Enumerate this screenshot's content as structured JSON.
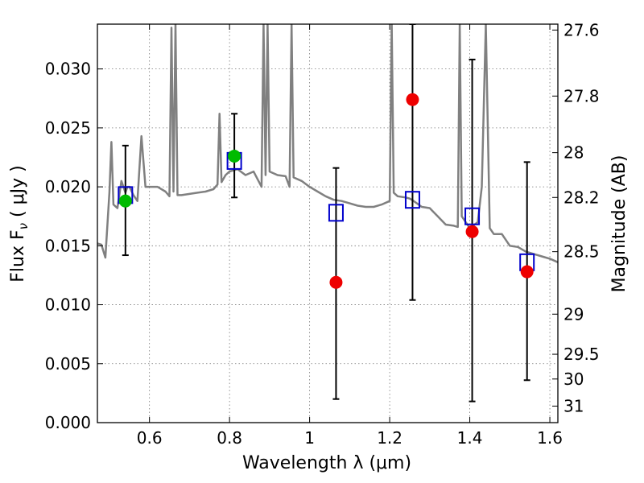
{
  "chart_data": {
    "type": "scatter",
    "xlabel": "Wavelength  λ (μm)",
    "ylabel": "Flux  F",
    "ylabel_sub": "ν",
    "ylabel_unit": "  ( μJy )",
    "y2label": "Magnitude (AB)",
    "xlim": [
      0.47,
      1.62
    ],
    "ylim": [
      0.0,
      0.0338
    ],
    "grid": true,
    "x_ticks": [
      0.6,
      0.8,
      1.0,
      1.2,
      1.4,
      1.6
    ],
    "x_tick_labels": [
      "0.6",
      "0.8",
      "1",
      "1.2",
      "1.4",
      "1.6"
    ],
    "y_ticks": [
      0.0,
      0.005,
      0.01,
      0.015,
      0.02,
      0.025,
      0.03
    ],
    "y_tick_labels": [
      "0.000",
      "0.005",
      "0.010",
      "0.015",
      "0.020",
      "0.025",
      "0.030"
    ],
    "y2_ticks": [
      {
        "flux": 0.0333,
        "label": "27.6"
      },
      {
        "flux": 0.0277,
        "label": "27.8"
      },
      {
        "flux": 0.0229,
        "label": "28"
      },
      {
        "flux": 0.0191,
        "label": "28.2"
      },
      {
        "flux": 0.0145,
        "label": "28.5"
      },
      {
        "flux": 0.0092,
        "label": "29"
      },
      {
        "flux": 0.0058,
        "label": "29.5"
      },
      {
        "flux": 0.0037,
        "label": "30"
      },
      {
        "flux": 0.0014,
        "label": "31"
      }
    ],
    "series": [
      {
        "name": "model-sed-spectrum",
        "kind": "line",
        "color": "#808080",
        "x": [
          0.47,
          0.48,
          0.49,
          0.5,
          0.505,
          0.51,
          0.52,
          0.53,
          0.54,
          0.545,
          0.55,
          0.56,
          0.57,
          0.58,
          0.59,
          0.6,
          0.62,
          0.64,
          0.65,
          0.655,
          0.66,
          0.665,
          0.67,
          0.68,
          0.7,
          0.72,
          0.74,
          0.76,
          0.77,
          0.775,
          0.78,
          0.79,
          0.8,
          0.82,
          0.84,
          0.86,
          0.88,
          0.885,
          0.89,
          0.895,
          0.9,
          0.92,
          0.94,
          0.95,
          0.955,
          0.96,
          0.98,
          1.0,
          1.02,
          1.04,
          1.06,
          1.08,
          1.1,
          1.12,
          1.14,
          1.16,
          1.18,
          1.2,
          1.205,
          1.21,
          1.22,
          1.24,
          1.25,
          1.26,
          1.28,
          1.3,
          1.32,
          1.34,
          1.36,
          1.37,
          1.375,
          1.38,
          1.4,
          1.42,
          1.43,
          1.44,
          1.45,
          1.46,
          1.48,
          1.5,
          1.52,
          1.54,
          1.56,
          1.58,
          1.6,
          1.62
        ],
        "values": [
          0.0152,
          0.0151,
          0.014,
          0.0195,
          0.0238,
          0.0185,
          0.0182,
          0.0205,
          0.0195,
          0.02,
          0.02,
          0.0193,
          0.0188,
          0.0243,
          0.02,
          0.02,
          0.02,
          0.0196,
          0.0192,
          0.0335,
          0.0196,
          0.0338,
          0.0193,
          0.0193,
          0.0194,
          0.0195,
          0.0196,
          0.0198,
          0.0202,
          0.0262,
          0.0204,
          0.021,
          0.0213,
          0.0215,
          0.021,
          0.0213,
          0.02,
          0.0338,
          0.021,
          0.0338,
          0.0213,
          0.021,
          0.0209,
          0.02,
          0.0338,
          0.0208,
          0.0205,
          0.02,
          0.0196,
          0.0192,
          0.0189,
          0.0188,
          0.0186,
          0.0184,
          0.0183,
          0.0183,
          0.0185,
          0.0188,
          0.0338,
          0.0195,
          0.0192,
          0.0191,
          0.019,
          0.0188,
          0.0183,
          0.0182,
          0.0175,
          0.0168,
          0.0167,
          0.0166,
          0.0338,
          0.0175,
          0.0165,
          0.017,
          0.02,
          0.0338,
          0.0165,
          0.016,
          0.016,
          0.015,
          0.0149,
          0.0145,
          0.0143,
          0.0141,
          0.0139,
          0.0136
        ]
      },
      {
        "name": "model-photometry",
        "kind": "open-square",
        "color": "#0000cc",
        "x": [
          0.54,
          0.812,
          1.066,
          1.257,
          1.406,
          1.543
        ],
        "values": [
          0.0193,
          0.0222,
          0.0178,
          0.0189,
          0.0175,
          0.0136
        ]
      },
      {
        "name": "observed-flux",
        "kind": "filled-circle",
        "color": "#ee0000",
        "x": [
          1.066,
          1.257,
          1.406,
          1.543
        ],
        "values": [
          0.0119,
          0.0274,
          0.0162,
          0.0128
        ]
      },
      {
        "name": "observed-flux-green",
        "kind": "filled-circle",
        "color": "#00bb00",
        "x": [
          0.54,
          0.812
        ],
        "values": [
          0.0188,
          0.0226
        ]
      },
      {
        "name": "flux-error",
        "kind": "errorbar",
        "color": "#000000",
        "x": [
          0.54,
          0.812,
          1.066,
          1.257,
          1.406,
          1.543
        ],
        "low": [
          0.0142,
          0.0191,
          0.002,
          0.0104,
          0.0018,
          0.0036
        ],
        "high": [
          0.0235,
          0.0262,
          0.0216,
          0.0338,
          0.0308,
          0.0221
        ]
      }
    ]
  }
}
